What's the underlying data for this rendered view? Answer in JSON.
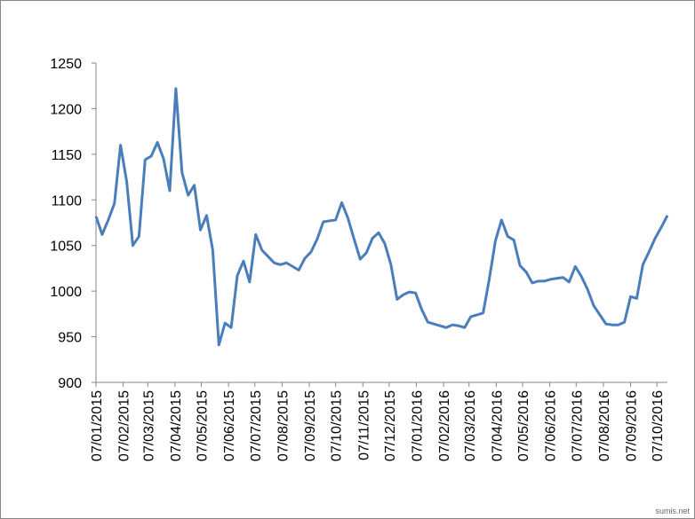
{
  "chart_data": {
    "type": "line",
    "x": [
      "07/01/2015",
      "14/01/2015",
      "21/01/2015",
      "28/01/2015",
      "04/02/2015",
      "11/02/2015",
      "18/02/2015",
      "25/02/2015",
      "04/03/2015",
      "11/03/2015",
      "18/03/2015",
      "25/03/2015",
      "01/04/2015",
      "08/04/2015",
      "15/04/2015",
      "22/04/2015",
      "29/04/2015",
      "06/05/2015",
      "13/05/2015",
      "20/05/2015",
      "27/05/2015",
      "03/06/2015",
      "10/06/2015",
      "17/06/2015",
      "24/06/2015",
      "01/07/2015",
      "08/07/2015",
      "15/07/2015",
      "22/07/2015",
      "29/07/2015",
      "05/08/2015",
      "12/08/2015",
      "19/08/2015",
      "26/08/2015",
      "02/09/2015",
      "09/09/2015",
      "16/09/2015",
      "23/09/2015",
      "30/09/2015",
      "07/10/2015",
      "14/10/2015",
      "21/10/2015",
      "28/10/2015",
      "04/11/2015",
      "11/11/2015",
      "18/11/2015",
      "25/11/2015",
      "02/12/2015",
      "09/12/2015",
      "16/12/2015",
      "23/12/2015",
      "30/12/2015",
      "06/01/2016",
      "13/01/2016",
      "20/01/2016",
      "27/01/2016",
      "03/02/2016",
      "10/02/2016",
      "17/02/2016",
      "24/02/2016",
      "02/03/2016",
      "09/03/2016",
      "16/03/2016",
      "23/03/2016",
      "30/03/2016",
      "06/04/2016",
      "13/04/2016",
      "20/04/2016",
      "27/04/2016",
      "04/05/2016",
      "11/05/2016",
      "18/05/2016",
      "25/05/2016",
      "01/06/2016",
      "08/06/2016",
      "15/06/2016",
      "22/06/2016",
      "29/06/2016",
      "06/07/2016",
      "13/07/2016",
      "20/07/2016",
      "27/07/2016",
      "03/08/2016",
      "10/08/2016",
      "17/08/2016",
      "24/08/2016",
      "31/08/2016",
      "07/09/2016",
      "14/09/2016",
      "21/09/2016",
      "28/09/2016",
      "05/10/2016",
      "12/10/2016",
      "19/10/2016"
    ],
    "series": [
      {
        "color": "#4a7ebb",
        "values": [
          1082,
          1062,
          1078,
          1096,
          1160,
          1120,
          1050,
          1060,
          1144,
          1148,
          1163,
          1145,
          1110,
          1222,
          1130,
          1105,
          1116,
          1067,
          1083,
          1045,
          941,
          965,
          960,
          1017,
          1033,
          1010,
          1062,
          1045,
          1038,
          1031,
          1029,
          1031,
          1027,
          1023,
          1036,
          1043,
          1057,
          1076,
          1077,
          1078,
          1097,
          1080,
          1057,
          1035,
          1042,
          1058,
          1064,
          1052,
          1029,
          991,
          996,
          999,
          998,
          980,
          966,
          964,
          962,
          960,
          963,
          962,
          960,
          972,
          974,
          976,
          1013,
          1055,
          1078,
          1060,
          1056,
          1028,
          1021,
          1009,
          1011,
          1011,
          1013,
          1014,
          1015,
          1010,
          1027,
          1016,
          1002,
          984,
          974,
          964,
          963,
          963,
          966,
          994,
          992,
          1029,
          1043,
          1058,
          1070,
          1083
        ]
      }
    ],
    "xlim": [
      "07/01/2015",
      "19/10/2016"
    ],
    "xticks": [
      "07/01/2015",
      "07/02/2015",
      "07/03/2015",
      "07/04/2015",
      "07/05/2015",
      "07/06/2015",
      "07/07/2015",
      "07/08/2015",
      "07/09/2015",
      "07/10/2015",
      "07/11/2015",
      "07/12/2015",
      "07/01/2016",
      "07/02/2016",
      "07/03/2016",
      "07/04/2016",
      "07/05/2016",
      "07/06/2016",
      "07/07/2016",
      "07/08/2016",
      "07/09/2016",
      "07/10/2016"
    ],
    "ylim": [
      900,
      1250
    ],
    "yticks": [
      900,
      950,
      1000,
      1050,
      1100,
      1150,
      1200,
      1250
    ],
    "watermark": "sumis.net"
  }
}
